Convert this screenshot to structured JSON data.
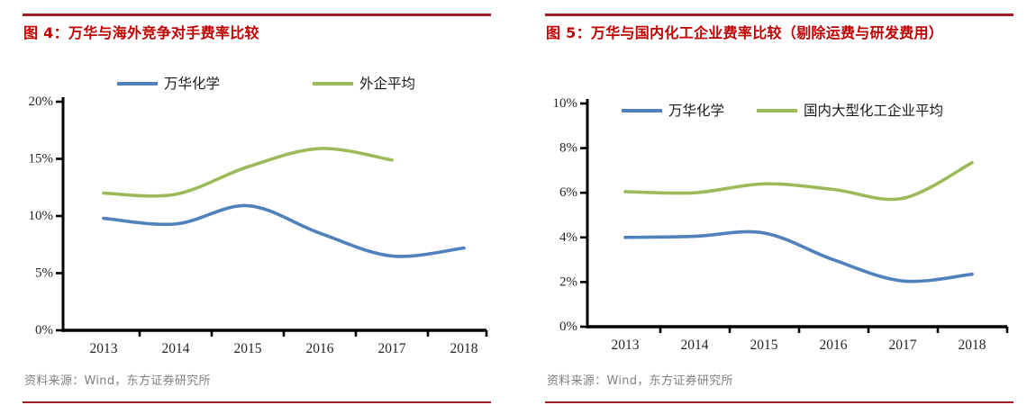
{
  "colors": {
    "title_red": "#c00000",
    "rule_red": "#a01f24",
    "axis_black": "#000000",
    "source_gray": "#808080",
    "series_blue": "#4f81bd",
    "series_green": "#9bbb59"
  },
  "chart_data": [
    {
      "type": "line",
      "title": "图 4：万华与海外竞争对手费率比较",
      "source": "资料来源：Wind，东方证券研究所",
      "categories": [
        "2013",
        "2014",
        "2015",
        "2016",
        "2017",
        "2018"
      ],
      "series": [
        {
          "name": "万华化学",
          "color": "#4f81bd",
          "values": [
            9.8,
            9.3,
            10.9,
            8.5,
            6.5,
            7.2
          ]
        },
        {
          "name": "外企平均",
          "color": "#9bbb59",
          "values": [
            12.0,
            11.9,
            14.3,
            15.9,
            14.9,
            null
          ]
        }
      ],
      "ylim": [
        0,
        20
      ],
      "ytick_step": 5,
      "ytick_labels": [
        "0%",
        "5%",
        "10%",
        "15%",
        "20%"
      ],
      "legend_position": "top",
      "grid": false
    },
    {
      "type": "line",
      "title": "图 5：万华与国内化工企业费率比较（剔除运费与研发费用）",
      "source": "资料来源：Wind，东方证券研究所",
      "categories": [
        "2013",
        "2014",
        "2015",
        "2016",
        "2017",
        "2018"
      ],
      "series": [
        {
          "name": "万华化学",
          "color": "#4f81bd",
          "values": [
            4.0,
            4.05,
            4.2,
            3.0,
            2.05,
            2.35
          ]
        },
        {
          "name": "国内大型化工企业平均",
          "color": "#9bbb59",
          "values": [
            6.05,
            6.0,
            6.4,
            6.15,
            5.75,
            7.35
          ]
        }
      ],
      "ylim": [
        0,
        10
      ],
      "ytick_step": 2,
      "ytick_labels": [
        "0%",
        "2%",
        "4%",
        "6%",
        "8%",
        "10%"
      ],
      "legend_position": "top-inside",
      "grid": false
    }
  ]
}
